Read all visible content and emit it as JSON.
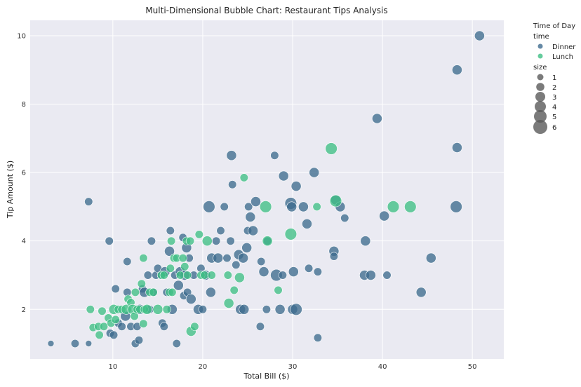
{
  "chart_data": {
    "type": "scatter",
    "title": "Multi-Dimensional Bubble Chart: Restaurant Tips Analysis",
    "xlabel": "Total Bill ($)",
    "ylabel": "Tip Amount ($)",
    "xlim": [
      0.8,
      53.5
    ],
    "ylim": [
      0.55,
      10.45
    ],
    "xticks": [
      10,
      20,
      30,
      40,
      50
    ],
    "yticks": [
      2,
      4,
      6,
      8,
      10
    ],
    "grid": true,
    "legend": {
      "title": "Time of Day",
      "position": "outside-right",
      "hue_title": "time",
      "size_title": "size",
      "hue_entries": [
        {
          "label": "Dinner",
          "color": "#3e6c8e"
        },
        {
          "label": "Lunch",
          "color": "#3fbf85"
        }
      ],
      "size_entries": [
        "1",
        "2",
        "3",
        "4",
        "5",
        "6"
      ]
    },
    "colors": {
      "Dinner": "#3e6c8e",
      "Lunch": "#3fbf85",
      "plot_bg": "#eaeaf2"
    },
    "series": [
      {
        "name": "Dinner",
        "points": [
          [
            3.1,
            1.0,
            1
          ],
          [
            5.8,
            1.0,
            2
          ],
          [
            7.3,
            1.0,
            1
          ],
          [
            7.3,
            5.15,
            2
          ],
          [
            9.6,
            4.0,
            2
          ],
          [
            9.7,
            1.3,
            2
          ],
          [
            10.1,
            1.25,
            2
          ],
          [
            10.3,
            2.6,
            2
          ],
          [
            10.6,
            1.6,
            2
          ],
          [
            11.0,
            1.5,
            2
          ],
          [
            11.4,
            1.8,
            3
          ],
          [
            11.6,
            2.5,
            2
          ],
          [
            11.6,
            3.4,
            2
          ],
          [
            12.0,
            1.5,
            2
          ],
          [
            12.5,
            1.0,
            2
          ],
          [
            12.7,
            1.5,
            2
          ],
          [
            12.9,
            1.1,
            2
          ],
          [
            13.0,
            2.0,
            3
          ],
          [
            13.3,
            2.6,
            2
          ],
          [
            13.5,
            2.5,
            3
          ],
          [
            13.9,
            3.0,
            2
          ],
          [
            14.1,
            2.0,
            2
          ],
          [
            14.3,
            4.0,
            2
          ],
          [
            14.5,
            2.5,
            2
          ],
          [
            14.8,
            3.0,
            2
          ],
          [
            15.0,
            3.2,
            2
          ],
          [
            15.4,
            3.0,
            2
          ],
          [
            15.5,
            1.6,
            2
          ],
          [
            15.7,
            1.5,
            2
          ],
          [
            15.8,
            3.1,
            3
          ],
          [
            16.0,
            2.5,
            2
          ],
          [
            16.3,
            3.7,
            3
          ],
          [
            16.4,
            4.3,
            2
          ],
          [
            16.6,
            2.0,
            3
          ],
          [
            16.9,
            3.0,
            2
          ],
          [
            17.1,
            1.0,
            2
          ],
          [
            17.3,
            2.7,
            3
          ],
          [
            17.5,
            3.1,
            3
          ],
          [
            17.8,
            4.1,
            2
          ],
          [
            17.9,
            2.4,
            2
          ],
          [
            18.0,
            3.0,
            3
          ],
          [
            18.2,
            3.8,
            3
          ],
          [
            18.3,
            2.5,
            2
          ],
          [
            18.5,
            3.5,
            2
          ],
          [
            18.7,
            2.3,
            3
          ],
          [
            19.0,
            3.0,
            2
          ],
          [
            19.5,
            2.0,
            3
          ],
          [
            19.8,
            3.2,
            2
          ],
          [
            20.0,
            2.0,
            2
          ],
          [
            20.3,
            3.0,
            3
          ],
          [
            20.7,
            5.0,
            4
          ],
          [
            20.9,
            2.5,
            3
          ],
          [
            21.0,
            3.5,
            3
          ],
          [
            21.5,
            4.0,
            2
          ],
          [
            21.7,
            3.5,
            3
          ],
          [
            22.0,
            4.3,
            2
          ],
          [
            22.4,
            5.0,
            2
          ],
          [
            22.7,
            3.5,
            2
          ],
          [
            23.1,
            4.0,
            2
          ],
          [
            23.2,
            6.5,
            3
          ],
          [
            23.3,
            5.65,
            2
          ],
          [
            23.7,
            3.3,
            2
          ],
          [
            24.0,
            3.6,
            3
          ],
          [
            24.2,
            2.0,
            3
          ],
          [
            24.5,
            3.5,
            3
          ],
          [
            24.6,
            2.0,
            3
          ],
          [
            24.9,
            3.8,
            3
          ],
          [
            25.0,
            4.3,
            2
          ],
          [
            25.1,
            5.0,
            2
          ],
          [
            25.3,
            4.7,
            3
          ],
          [
            25.6,
            4.3,
            3
          ],
          [
            25.9,
            5.15,
            3
          ],
          [
            26.4,
            1.5,
            2
          ],
          [
            26.5,
            3.4,
            2
          ],
          [
            26.8,
            3.1,
            3
          ],
          [
            27.1,
            2.0,
            2
          ],
          [
            27.2,
            4.0,
            2
          ],
          [
            28.0,
            6.5,
            2
          ],
          [
            28.2,
            3.0,
            4
          ],
          [
            28.6,
            2.0,
            3
          ],
          [
            28.9,
            3.0,
            2
          ],
          [
            29.0,
            5.9,
            3
          ],
          [
            29.8,
            5.1,
            4
          ],
          [
            29.9,
            5.0,
            3
          ],
          [
            30.0,
            2.0,
            3
          ],
          [
            30.1,
            3.1,
            3
          ],
          [
            30.4,
            2.0,
            4
          ],
          [
            30.4,
            5.6,
            3
          ],
          [
            31.2,
            5.0,
            3
          ],
          [
            31.6,
            4.5,
            3
          ],
          [
            31.8,
            3.2,
            2
          ],
          [
            32.4,
            6.0,
            3
          ],
          [
            32.8,
            3.1,
            2
          ],
          [
            32.8,
            1.17,
            2
          ],
          [
            34.6,
            3.7,
            3
          ],
          [
            34.6,
            3.55,
            2
          ],
          [
            34.8,
            5.2,
            3
          ],
          [
            35.3,
            5.0,
            3
          ],
          [
            35.8,
            4.67,
            2
          ],
          [
            38.0,
            3.0,
            3
          ],
          [
            38.1,
            4.0,
            3
          ],
          [
            38.7,
            3.0,
            3
          ],
          [
            39.4,
            7.58,
            3
          ],
          [
            40.2,
            4.73,
            3
          ],
          [
            40.5,
            3.0,
            2
          ],
          [
            44.3,
            2.5,
            3
          ],
          [
            45.4,
            3.5,
            3
          ],
          [
            48.2,
            5.0,
            4
          ],
          [
            48.3,
            6.73,
            3
          ],
          [
            48.3,
            9.0,
            3
          ],
          [
            50.8,
            10.0,
            3
          ]
        ]
      },
      {
        "name": "Lunch",
        "points": [
          [
            7.5,
            2.0,
            2
          ],
          [
            7.8,
            1.47,
            2
          ],
          [
            8.4,
            1.5,
            2
          ],
          [
            8.5,
            1.25,
            2
          ],
          [
            8.8,
            1.95,
            2
          ],
          [
            9.0,
            1.5,
            2
          ],
          [
            9.5,
            1.75,
            2
          ],
          [
            9.8,
            1.6,
            2
          ],
          [
            10.1,
            2.0,
            3
          ],
          [
            10.3,
            1.7,
            2
          ],
          [
            10.6,
            2.0,
            2
          ],
          [
            11.0,
            2.0,
            2
          ],
          [
            11.5,
            2.0,
            3
          ],
          [
            11.7,
            2.3,
            2
          ],
          [
            12.0,
            2.2,
            2
          ],
          [
            12.2,
            2.0,
            3
          ],
          [
            12.4,
            1.8,
            2
          ],
          [
            12.5,
            2.5,
            2
          ],
          [
            12.7,
            2.0,
            2
          ],
          [
            13.0,
            2.0,
            2
          ],
          [
            13.2,
            2.75,
            2
          ],
          [
            13.4,
            1.58,
            2
          ],
          [
            13.4,
            3.5,
            2
          ],
          [
            13.5,
            2.0,
            2
          ],
          [
            13.8,
            2.0,
            3
          ],
          [
            14.1,
            2.5,
            2
          ],
          [
            14.5,
            2.5,
            2
          ],
          [
            15.0,
            2.0,
            3
          ],
          [
            15.4,
            3.0,
            2
          ],
          [
            15.7,
            3.0,
            2
          ],
          [
            16.0,
            2.0,
            2
          ],
          [
            16.3,
            2.5,
            2
          ],
          [
            16.4,
            3.2,
            2
          ],
          [
            16.5,
            4.0,
            2
          ],
          [
            16.6,
            2.5,
            2
          ],
          [
            16.8,
            3.5,
            2
          ],
          [
            17.1,
            3.5,
            2
          ],
          [
            17.5,
            3.0,
            2
          ],
          [
            17.8,
            3.5,
            2
          ],
          [
            18.0,
            3.25,
            2
          ],
          [
            18.2,
            4.0,
            2
          ],
          [
            18.3,
            3.0,
            2
          ],
          [
            18.6,
            4.0,
            2
          ],
          [
            18.7,
            1.36,
            3
          ],
          [
            19.1,
            1.5,
            2
          ],
          [
            19.6,
            4.19,
            2
          ],
          [
            19.8,
            3.0,
            2
          ],
          [
            20.2,
            3.0,
            2
          ],
          [
            20.5,
            4.0,
            3
          ],
          [
            21.0,
            3.0,
            2
          ],
          [
            22.8,
            3.0,
            2
          ],
          [
            22.9,
            2.18,
            3
          ],
          [
            23.5,
            2.56,
            2
          ],
          [
            24.1,
            2.93,
            3
          ],
          [
            24.6,
            5.85,
            2
          ],
          [
            27.0,
            5.0,
            4
          ],
          [
            27.2,
            4.0,
            3
          ],
          [
            28.4,
            2.56,
            2
          ],
          [
            29.8,
            4.2,
            4
          ],
          [
            32.7,
            5.0,
            2
          ],
          [
            34.3,
            6.7,
            4
          ],
          [
            34.8,
            5.17,
            4
          ],
          [
            41.2,
            5.0,
            4
          ],
          [
            43.1,
            5.0,
            4
          ]
        ]
      }
    ]
  }
}
